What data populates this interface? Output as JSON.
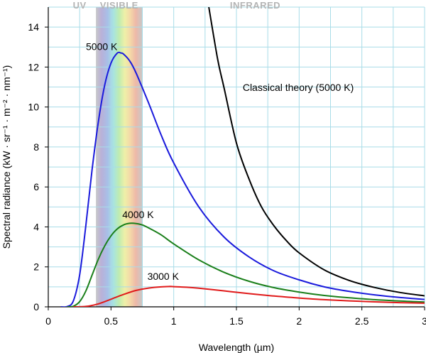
{
  "chart_data": {
    "type": "line",
    "xlabel": "Wavelength (µm)",
    "ylabel": "Spectral radiance (kW · sr⁻¹ · m⁻² · nm⁻¹)",
    "xlim": [
      0,
      3
    ],
    "ylim": [
      0,
      15
    ],
    "x_tick_labels": [
      "0",
      "0.5",
      "1",
      "1.5",
      "2",
      "2.5",
      "3"
    ],
    "y_tick_labels": [
      "0",
      "2",
      "4",
      "6",
      "8",
      "10",
      "12",
      "14"
    ],
    "grid": true,
    "band_labels": [
      "UV",
      "VISIBLE",
      "INFRARED"
    ],
    "visible_band": [
      0.38,
      0.75
    ],
    "series": [
      {
        "name": "5000 K",
        "color": "#1a1adc",
        "x": [
          0.1,
          0.15,
          0.2,
          0.25,
          0.3,
          0.35,
          0.4,
          0.45,
          0.5,
          0.55,
          0.58,
          0.6,
          0.65,
          0.7,
          0.8,
          0.9,
          1.0,
          1.2,
          1.4,
          1.6,
          1.8,
          2.0,
          2.2,
          2.4,
          2.6,
          2.8,
          3.0
        ],
        "y": [
          0.0,
          0.01,
          0.3,
          1.6,
          4.1,
          6.9,
          9.3,
          11.1,
          12.2,
          12.7,
          12.7,
          12.65,
          12.3,
          11.7,
          10.2,
          8.6,
          7.2,
          5.0,
          3.5,
          2.5,
          1.8,
          1.35,
          1.0,
          0.77,
          0.6,
          0.47,
          0.37
        ]
      },
      {
        "name": "4000 K",
        "color": "#1a7f1a",
        "x": [
          0.15,
          0.2,
          0.25,
          0.3,
          0.35,
          0.4,
          0.45,
          0.5,
          0.55,
          0.6,
          0.65,
          0.7,
          0.75,
          0.8,
          0.9,
          1.0,
          1.2,
          1.4,
          1.6,
          1.8,
          2.0,
          2.2,
          2.4,
          2.6,
          2.8,
          3.0
        ],
        "y": [
          0.0,
          0.03,
          0.26,
          0.8,
          1.6,
          2.4,
          3.05,
          3.55,
          3.9,
          4.1,
          4.18,
          4.17,
          4.1,
          3.95,
          3.6,
          3.15,
          2.35,
          1.73,
          1.28,
          0.96,
          0.74,
          0.57,
          0.45,
          0.36,
          0.29,
          0.24
        ]
      },
      {
        "name": "3000 K",
        "color": "#e01a1a",
        "x": [
          0.2,
          0.3,
          0.4,
          0.5,
          0.6,
          0.7,
          0.8,
          0.9,
          0.97,
          1.0,
          1.1,
          1.2,
          1.4,
          1.6,
          1.8,
          2.0,
          2.2,
          2.4,
          2.6,
          2.8,
          3.0
        ],
        "y": [
          0.0,
          0.02,
          0.15,
          0.38,
          0.62,
          0.82,
          0.94,
          1.0,
          1.02,
          1.01,
          0.98,
          0.93,
          0.8,
          0.66,
          0.54,
          0.44,
          0.36,
          0.3,
          0.25,
          0.21,
          0.18
        ]
      },
      {
        "name": "Classical theory (5000 K)",
        "color": "#000000",
        "x": [
          1.28,
          1.35,
          1.4,
          1.5,
          1.6,
          1.7,
          1.8,
          1.9,
          2.0,
          2.2,
          2.4,
          2.6,
          2.8,
          3.0
        ],
        "y": [
          15.0,
          12.4,
          11.0,
          8.2,
          6.4,
          5.0,
          4.05,
          3.3,
          2.7,
          1.85,
          1.32,
          0.97,
          0.72,
          0.55
        ]
      }
    ],
    "annotations": [
      {
        "text": "5000 K",
        "x": 0.3,
        "y": 12.85
      },
      {
        "text": "4000 K",
        "x": 0.59,
        "y": 4.45
      },
      {
        "text": "3000 K",
        "x": 0.79,
        "y": 1.35
      },
      {
        "text": "Classical theory (5000 K)",
        "x": 1.55,
        "y": 10.8
      }
    ]
  }
}
